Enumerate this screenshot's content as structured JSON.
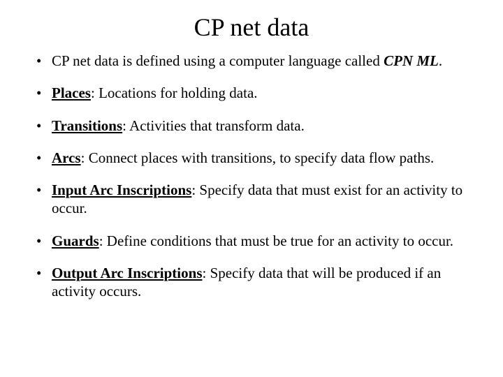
{
  "title": "CP net data",
  "bullets": [
    {
      "pre": "CP net data is defined using a computer language called ",
      "term": "CPN ML",
      "termItalic": true,
      "termUnderline": false,
      "rest": "."
    },
    {
      "pre": "",
      "term": "Places",
      "termItalic": false,
      "termUnderline": true,
      "rest": ": Locations for holding data."
    },
    {
      "pre": "",
      "term": "Transitions",
      "termItalic": false,
      "termUnderline": true,
      "rest": ": Activities that transform data."
    },
    {
      "pre": "",
      "term": "Arcs",
      "termItalic": false,
      "termUnderline": true,
      "rest": ": Connect places with transitions, to specify data flow paths."
    },
    {
      "pre": "",
      "term": "Input Arc Inscriptions",
      "termItalic": false,
      "termUnderline": true,
      "rest": ": Specify data that must exist for an activity to occur."
    },
    {
      "pre": "",
      "term": "Guards",
      "termItalic": false,
      "termUnderline": true,
      "rest": ": Define conditions that must be true for an activity to occur."
    },
    {
      "pre": "",
      "term": "Output Arc Inscriptions",
      "termItalic": false,
      "termUnderline": true,
      "rest": ": Specify data that will be produced if an activity occurs."
    }
  ],
  "style": {
    "background": "#ffffff",
    "textColor": "#000000",
    "titleFontSize": 36,
    "bodyFontSize": 21,
    "fontFamily": "Times New Roman"
  }
}
